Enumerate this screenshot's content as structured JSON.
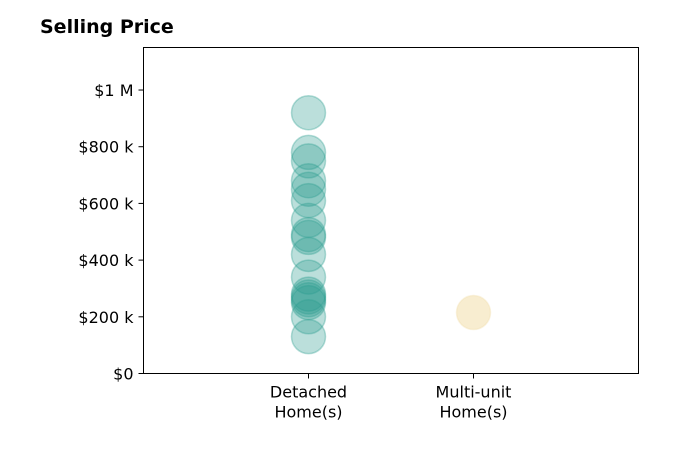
{
  "chart_data": {
    "type": "scatter",
    "title": "Selling Price",
    "xlabel": "",
    "ylabel": "",
    "categories": [
      {
        "lines": [
          "Detached",
          "Home(s)"
        ]
      },
      {
        "lines": [
          "Multi-unit",
          "Home(s)"
        ]
      }
    ],
    "y_ticks": [
      {
        "value": 0,
        "label": "$0"
      },
      {
        "value": 200000,
        "label": "$200 k"
      },
      {
        "value": 400000,
        "label": "$400 k"
      },
      {
        "value": 600000,
        "label": "$600 k"
      },
      {
        "value": 800000,
        "label": "$800 k"
      },
      {
        "value": 1000000,
        "label": "$1 M"
      }
    ],
    "ylim": [
      0,
      1150000
    ],
    "xlim": [
      -1,
      2
    ],
    "grid": false,
    "series": [
      {
        "color": "#2a9d8f",
        "category_index": 0,
        "values": [
          920000,
          780000,
          750000,
          680000,
          650000,
          610000,
          540000,
          490000,
          480000,
          420000,
          340000,
          280000,
          270000,
          260000,
          250000,
          200000,
          130000
        ]
      },
      {
        "color": "#f2deaa",
        "category_index": 1,
        "values": [
          215000
        ]
      }
    ]
  }
}
